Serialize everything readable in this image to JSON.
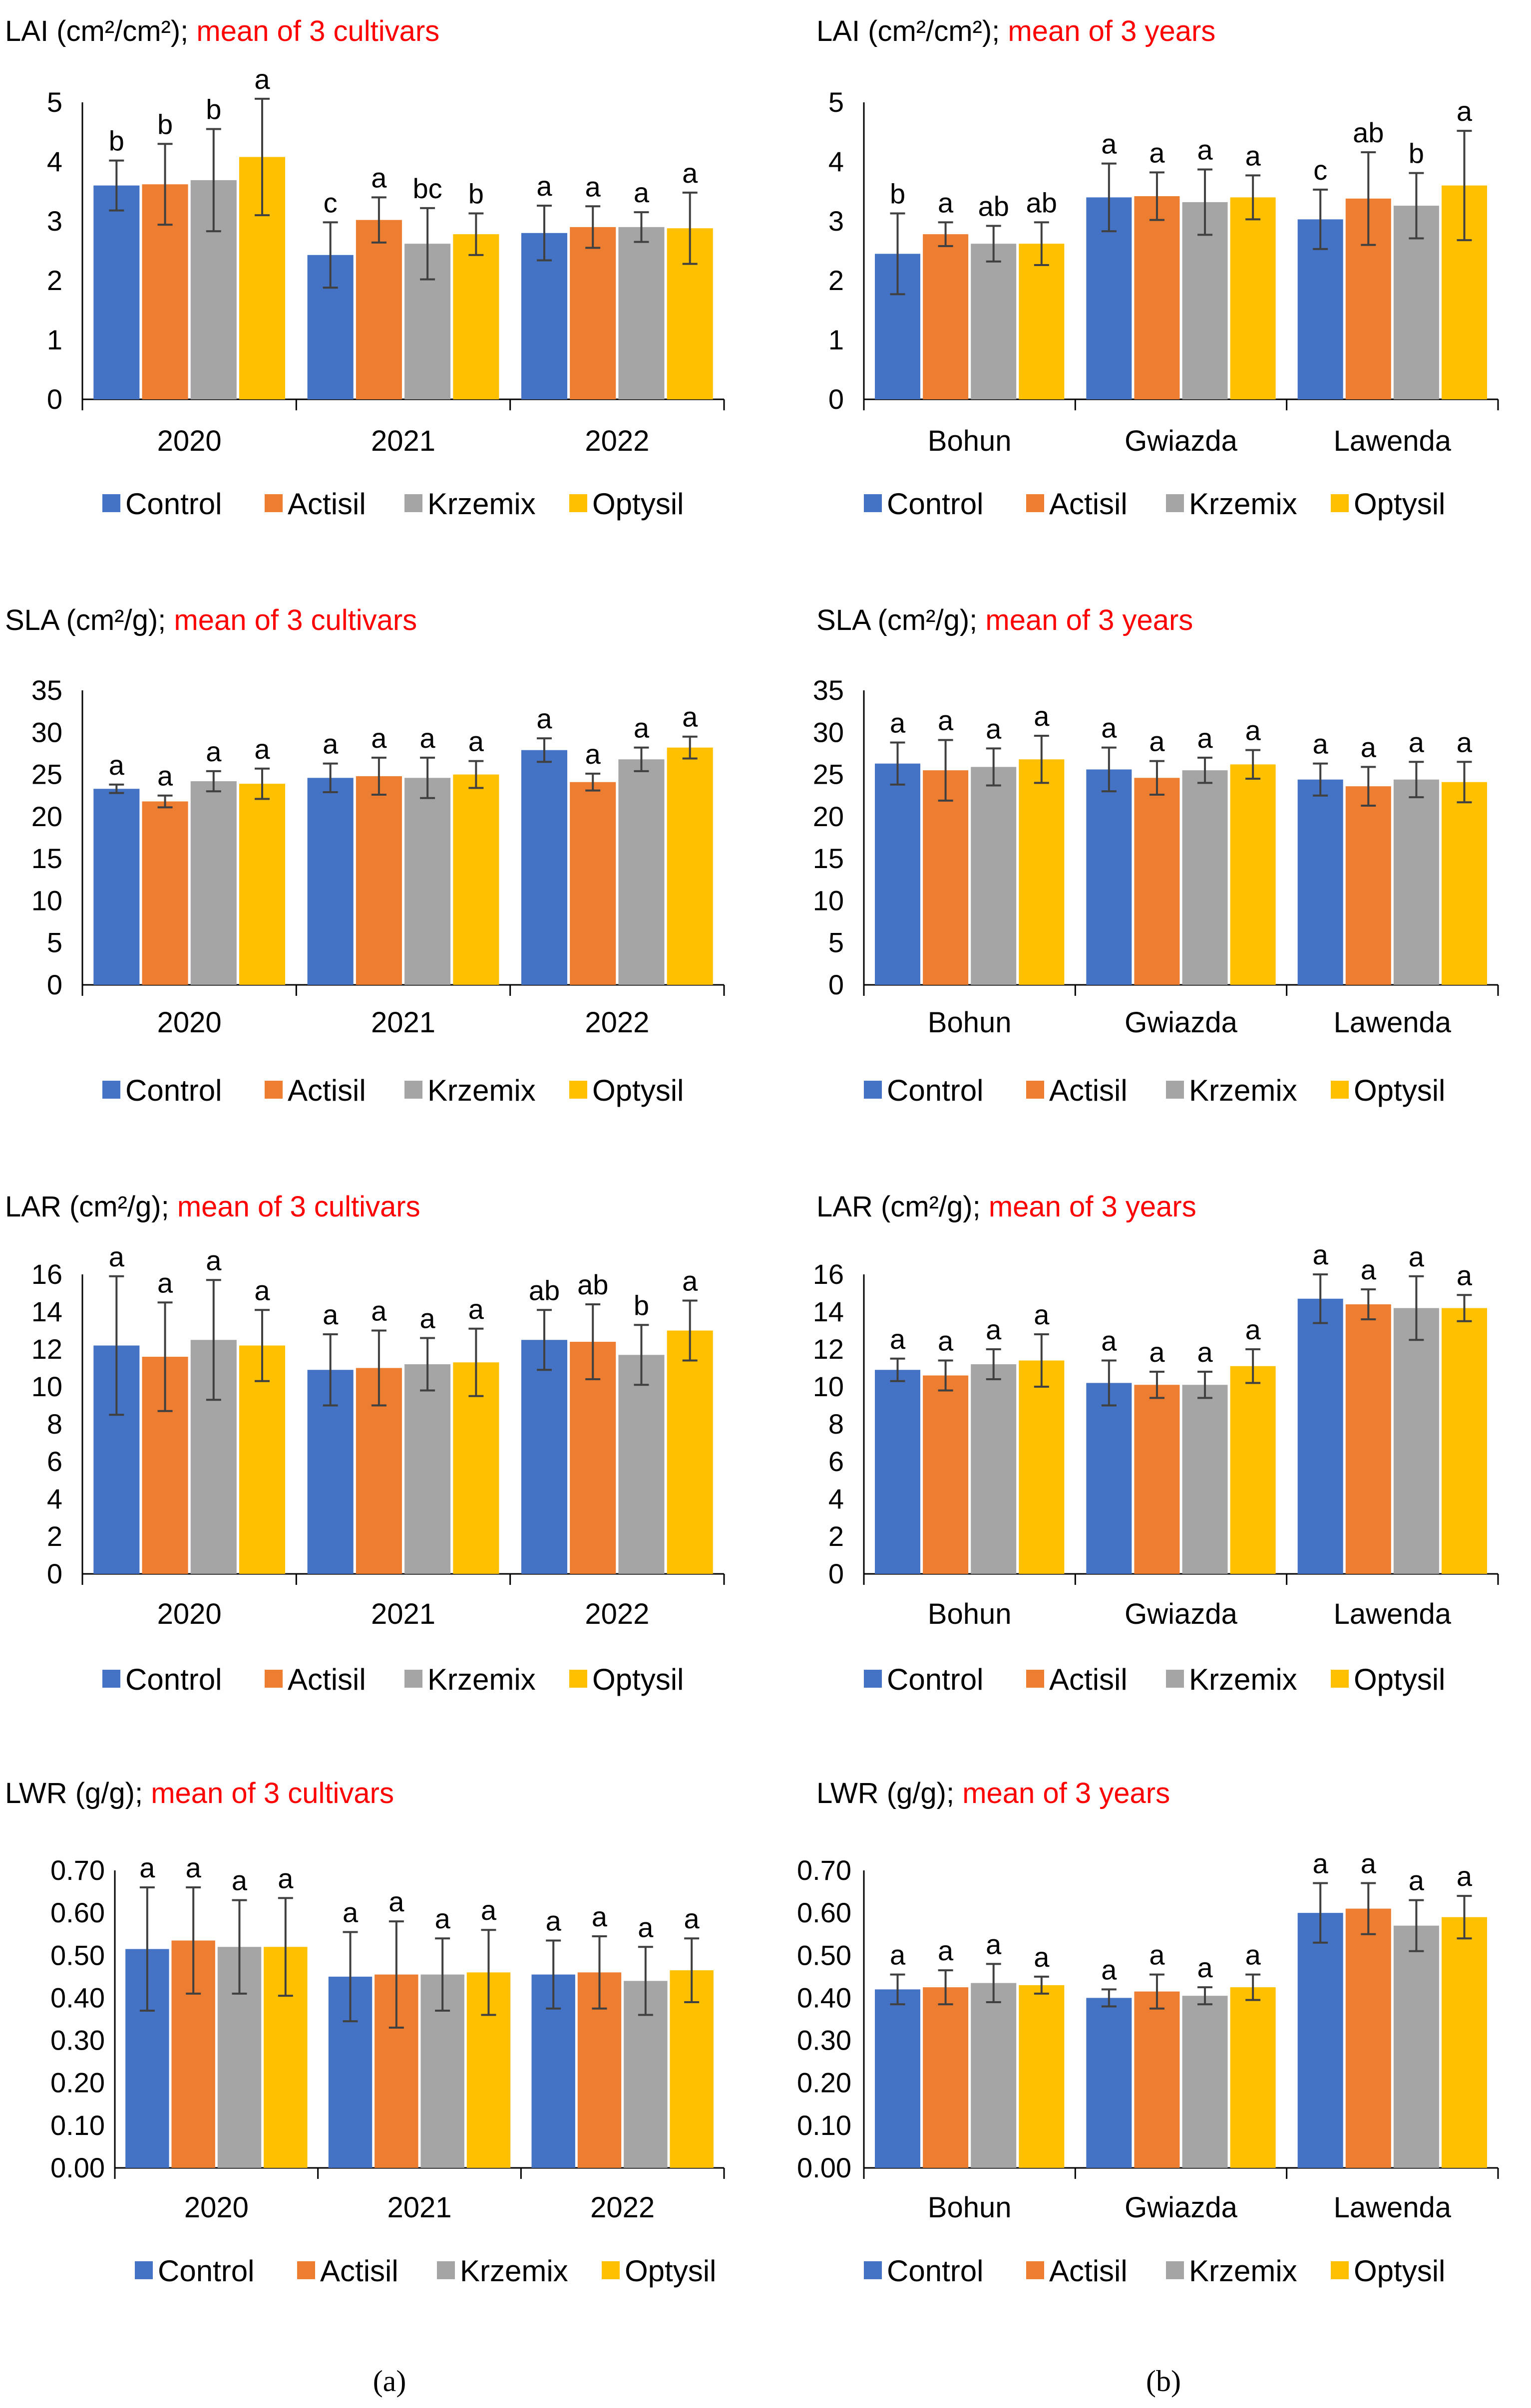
{
  "figure": {
    "panel_labels": [
      "(a)",
      "(b)"
    ],
    "highlight_color": "#ff0000",
    "series_colors": [
      "#4472c4",
      "#ed7d31",
      "#a5a5a5",
      "#ffc000"
    ],
    "legend": [
      "Control",
      "Actisil",
      "Krzemix",
      "Optysil"
    ]
  },
  "chart_data": [
    {
      "type": "bar",
      "id": "lai-cultivars",
      "title": "LAI (cm²/cm²);",
      "title_note": "mean of 3 cultivars",
      "categories": [
        "2020",
        "2021",
        "2022"
      ],
      "ylim": [
        0,
        5
      ],
      "yticks": [
        "0",
        "1",
        "2",
        "3",
        "4",
        "5"
      ],
      "series": [
        {
          "name": "Control",
          "values": [
            3.6,
            2.43,
            2.8
          ],
          "errors": [
            0.42,
            0.55,
            0.46
          ],
          "letters": [
            "b",
            "c",
            "a"
          ]
        },
        {
          "name": "Actisil",
          "values": [
            3.62,
            3.02,
            2.9
          ],
          "errors": [
            0.68,
            0.38,
            0.35
          ],
          "letters": [
            "b",
            "a",
            "a"
          ]
        },
        {
          "name": "Krzemix",
          "values": [
            3.69,
            2.62,
            2.9
          ],
          "errors": [
            0.86,
            0.6,
            0.25
          ],
          "letters": [
            "b",
            "bc",
            "a"
          ]
        },
        {
          "name": "Optysil",
          "values": [
            4.08,
            2.78,
            2.88
          ],
          "errors": [
            0.98,
            0.35,
            0.6
          ],
          "letters": [
            "a",
            "b",
            "a"
          ]
        }
      ]
    },
    {
      "type": "bar",
      "id": "lai-years",
      "title": "LAI (cm²/cm²);",
      "title_note": "mean of 3 years",
      "categories": [
        "Bohun",
        "Gwiazda",
        "Lawenda"
      ],
      "ylim": [
        0,
        5
      ],
      "yticks": [
        "0",
        "1",
        "2",
        "3",
        "4",
        "5"
      ],
      "series": [
        {
          "name": "Control",
          "values": [
            2.45,
            3.4,
            3.03
          ],
          "errors": [
            0.68,
            0.57,
            0.5
          ],
          "letters": [
            "b",
            "a",
            "c"
          ]
        },
        {
          "name": "Actisil",
          "values": [
            2.78,
            3.42,
            3.38
          ],
          "errors": [
            0.2,
            0.4,
            0.78
          ],
          "letters": [
            "a",
            "a",
            "ab"
          ]
        },
        {
          "name": "Krzemix",
          "values": [
            2.62,
            3.32,
            3.26
          ],
          "errors": [
            0.3,
            0.55,
            0.55
          ],
          "letters": [
            "ab",
            "a",
            "b"
          ]
        },
        {
          "name": "Optysil",
          "values": [
            2.62,
            3.4,
            3.6
          ],
          "errors": [
            0.36,
            0.37,
            0.92
          ],
          "letters": [
            "ab",
            "a",
            "a"
          ]
        }
      ]
    },
    {
      "type": "bar",
      "id": "sla-cultivars",
      "title": "SLA (cm²/g);",
      "title_note": "mean of 3 cultivars",
      "categories": [
        "2020",
        "2021",
        "2022"
      ],
      "ylim": [
        0,
        35
      ],
      "yticks": [
        "0",
        "5",
        "10",
        "15",
        "20",
        "25",
        "30",
        "35"
      ],
      "series": [
        {
          "name": "Control",
          "values": [
            23.3,
            24.6,
            27.9
          ],
          "errors": [
            0.5,
            1.7,
            1.4
          ],
          "letters": [
            "a",
            "a",
            "a"
          ]
        },
        {
          "name": "Actisil",
          "values": [
            21.8,
            24.8,
            24.1
          ],
          "errors": [
            0.7,
            2.2,
            1.0
          ],
          "letters": [
            "a",
            "a",
            "a"
          ]
        },
        {
          "name": "Krzemix",
          "values": [
            24.2,
            24.6,
            26.8
          ],
          "errors": [
            1.2,
            2.4,
            1.4
          ],
          "letters": [
            "a",
            "a",
            "a"
          ]
        },
        {
          "name": "Optysil",
          "values": [
            23.9,
            25.0,
            28.2
          ],
          "errors": [
            1.8,
            1.6,
            1.3
          ],
          "letters": [
            "a",
            "a",
            "a"
          ]
        }
      ]
    },
    {
      "type": "bar",
      "id": "sla-years",
      "title": "SLA (cm²/g);",
      "title_note": "mean of 3 years",
      "categories": [
        "Bohun",
        "Gwiazda",
        "Lawenda"
      ],
      "ylim": [
        0,
        35
      ],
      "yticks": [
        "0",
        "5",
        "10",
        "15",
        "20",
        "25",
        "30",
        "35"
      ],
      "series": [
        {
          "name": "Control",
          "values": [
            26.3,
            25.6,
            24.4
          ],
          "errors": [
            2.5,
            2.6,
            1.9
          ],
          "letters": [
            "a",
            "a",
            "a"
          ]
        },
        {
          "name": "Actisil",
          "values": [
            25.5,
            24.6,
            23.6
          ],
          "errors": [
            3.6,
            2.0,
            2.3
          ],
          "letters": [
            "a",
            "a",
            "a"
          ]
        },
        {
          "name": "Krzemix",
          "values": [
            25.9,
            25.5,
            24.4
          ],
          "errors": [
            2.2,
            1.5,
            2.1
          ],
          "letters": [
            "a",
            "a",
            "a"
          ]
        },
        {
          "name": "Optysil",
          "values": [
            26.8,
            26.2,
            24.1
          ],
          "errors": [
            2.8,
            1.7,
            2.4
          ],
          "letters": [
            "a",
            "a",
            "a"
          ]
        }
      ]
    },
    {
      "type": "bar",
      "id": "lar-cultivars",
      "title": "LAR (cm²/g);",
      "title_note": "mean of 3 cultivars",
      "categories": [
        "2020",
        "2021",
        "2022"
      ],
      "ylim": [
        0,
        16
      ],
      "yticks": [
        "0",
        "2",
        "4",
        "6",
        "8",
        "10",
        "12",
        "14",
        "16"
      ],
      "series": [
        {
          "name": "Control",
          "values": [
            12.2,
            10.9,
            12.5
          ],
          "errors": [
            3.7,
            1.9,
            1.6
          ],
          "letters": [
            "a",
            "a",
            "ab"
          ]
        },
        {
          "name": "Actisil",
          "values": [
            11.6,
            11.0,
            12.4
          ],
          "errors": [
            2.9,
            2.0,
            2.0
          ],
          "letters": [
            "a",
            "a",
            "ab"
          ]
        },
        {
          "name": "Krzemix",
          "values": [
            12.5,
            11.2,
            11.7
          ],
          "errors": [
            3.2,
            1.4,
            1.6
          ],
          "letters": [
            "a",
            "a",
            "b"
          ]
        },
        {
          "name": "Optysil",
          "values": [
            12.2,
            11.3,
            13.0
          ],
          "errors": [
            1.9,
            1.8,
            1.6
          ],
          "letters": [
            "a",
            "a",
            "a"
          ]
        }
      ]
    },
    {
      "type": "bar",
      "id": "lar-years",
      "title": "LAR (cm²/g);",
      "title_note": "mean of 3 years",
      "categories": [
        "Bohun",
        "Gwiazda",
        "Lawenda"
      ],
      "ylim": [
        0,
        16
      ],
      "yticks": [
        "0",
        "2",
        "4",
        "6",
        "8",
        "10",
        "12",
        "14",
        "16"
      ],
      "series": [
        {
          "name": "Control",
          "values": [
            10.9,
            10.2,
            14.7
          ],
          "errors": [
            0.6,
            1.2,
            1.3
          ],
          "letters": [
            "a",
            "a",
            "a"
          ]
        },
        {
          "name": "Actisil",
          "values": [
            10.6,
            10.1,
            14.4
          ],
          "errors": [
            0.8,
            0.7,
            0.8
          ],
          "letters": [
            "a",
            "a",
            "a"
          ]
        },
        {
          "name": "Krzemix",
          "values": [
            11.2,
            10.1,
            14.2
          ],
          "errors": [
            0.8,
            0.7,
            1.7
          ],
          "letters": [
            "a",
            "a",
            "a"
          ]
        },
        {
          "name": "Optysil",
          "values": [
            11.4,
            11.1,
            14.2
          ],
          "errors": [
            1.4,
            0.9,
            0.7
          ],
          "letters": [
            "a",
            "a",
            "a"
          ]
        }
      ]
    },
    {
      "type": "bar",
      "id": "lwr-cultivars",
      "title": "LWR (g/g);",
      "title_note": "mean of 3 cultivars",
      "categories": [
        "2020",
        "2021",
        "2022"
      ],
      "ylim": [
        0,
        0.7
      ],
      "yticks": [
        "0.00",
        "0.10",
        "0.20",
        "0.30",
        "0.40",
        "0.50",
        "0.60",
        "0.70"
      ],
      "series": [
        {
          "name": "Control",
          "values": [
            0.515,
            0.45,
            0.455
          ],
          "errors": [
            0.145,
            0.105,
            0.08
          ],
          "letters": [
            "a",
            "a",
            "a"
          ]
        },
        {
          "name": "Actisil",
          "values": [
            0.535,
            0.455,
            0.46
          ],
          "errors": [
            0.125,
            0.125,
            0.085
          ],
          "letters": [
            "a",
            "a",
            "a"
          ]
        },
        {
          "name": "Krzemix",
          "values": [
            0.52,
            0.455,
            0.44
          ],
          "errors": [
            0.11,
            0.085,
            0.08
          ],
          "letters": [
            "a",
            "a",
            "a"
          ]
        },
        {
          "name": "Optysil",
          "values": [
            0.52,
            0.46,
            0.465
          ],
          "errors": [
            0.115,
            0.1,
            0.075
          ],
          "letters": [
            "a",
            "a",
            "a"
          ]
        }
      ]
    },
    {
      "type": "bar",
      "id": "lwr-years",
      "title": "LWR (g/g);",
      "title_note": "mean of 3 years",
      "categories": [
        "Bohun",
        "Gwiazda",
        "Lawenda"
      ],
      "ylim": [
        0,
        0.7
      ],
      "yticks": [
        "0.00",
        "0.10",
        "0.20",
        "0.30",
        "0.40",
        "0.50",
        "0.60",
        "0.70"
      ],
      "series": [
        {
          "name": "Control",
          "values": [
            0.42,
            0.4,
            0.6
          ],
          "errors": [
            0.035,
            0.02,
            0.07
          ],
          "letters": [
            "a",
            "a",
            "a"
          ]
        },
        {
          "name": "Actisil",
          "values": [
            0.425,
            0.415,
            0.61
          ],
          "errors": [
            0.04,
            0.04,
            0.06
          ],
          "letters": [
            "a",
            "a",
            "a"
          ]
        },
        {
          "name": "Krzemix",
          "values": [
            0.435,
            0.405,
            0.57
          ],
          "errors": [
            0.045,
            0.02,
            0.06
          ],
          "letters": [
            "a",
            "a",
            "a"
          ]
        },
        {
          "name": "Optysil",
          "values": [
            0.43,
            0.425,
            0.59
          ],
          "errors": [
            0.02,
            0.03,
            0.05
          ],
          "letters": [
            "a",
            "a",
            "a"
          ]
        }
      ]
    }
  ]
}
